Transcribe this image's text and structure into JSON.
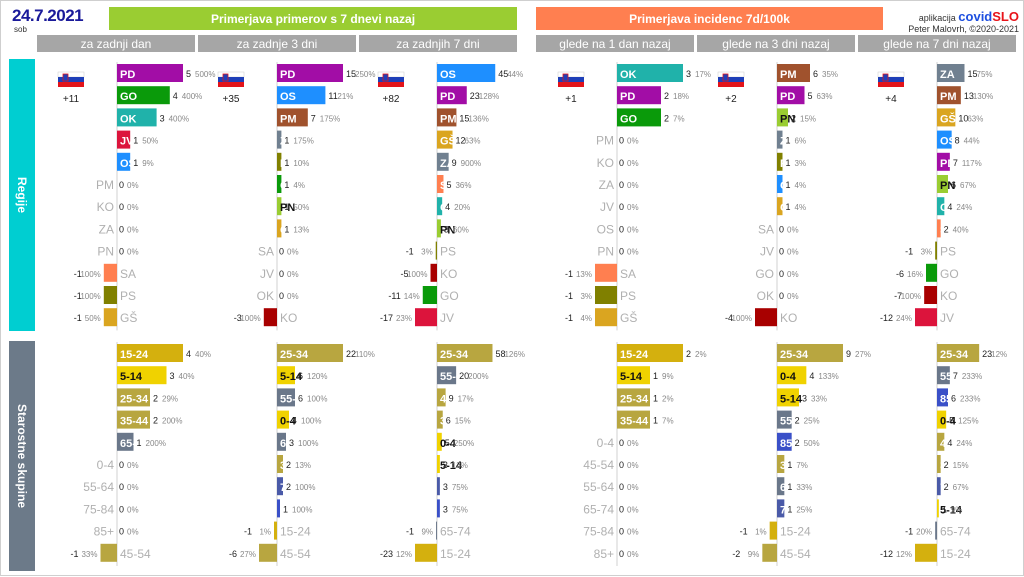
{
  "header": {
    "date": "24.7.2021",
    "day": "sob",
    "title_cases": "Primerjava primerov s 7 dnevi nazaj",
    "title_incidence": "Primerjava incidenc 7d/100k",
    "app_label": "aplikacija",
    "app_name_a": "covid",
    "app_name_b": "SLO",
    "author": "Peter Malovrh, ©2020-2021",
    "subtitles": [
      "za zadnji dan",
      "za zadnje 3 dni",
      "za zadnjih 7 dni",
      "glede na 1 dan nazaj",
      "glede na 3 dni nazaj",
      "glede na 7 dni nazaj"
    ]
  },
  "sidebar": {
    "regions_label": "Regije",
    "age_label": "Starostne skupine"
  },
  "colors": {
    "header_green": "#9acd32",
    "header_orange": "#ff7f50",
    "sidebar_cyan": "#00ced1",
    "sidebar_slate": "#6c7a89",
    "regions": {
      "PD": "#a20da6",
      "GO": "#0a9a0a",
      "OK": "#20b2aa",
      "JV": "#dc143c",
      "OS": "#1e8fff",
      "PM": "#a0522d",
      "KO": "#a80000",
      "ZA": "#708090",
      "PN": "#9acd32",
      "SA": "#ff7f50",
      "PS": "#808000",
      "GŠ": "#daa520"
    },
    "ages": {
      "15-24": "#d4b00e",
      "5-14": "#f0d200",
      "25-34": "#b8a640",
      "35-44": "#b8a640",
      "65-74": "#6a778a",
      "0-4": "#f0d200",
      "55-64": "#6a778a",
      "75-84": "#4a5aa8",
      "85+": "#3a50c8",
      "45-54": "#b8a640"
    }
  },
  "chart_data": {
    "type": "bar",
    "panels": [
      {
        "subtitle": "za zadnji dan",
        "flag_total": "+11",
        "regions": [
          [
            "PD",
            5,
            "500%"
          ],
          [
            "GO",
            4,
            "400%"
          ],
          [
            "OK",
            3,
            "400%"
          ],
          [
            "JV",
            1,
            "50%"
          ],
          [
            "OS",
            1,
            "9%"
          ],
          [
            "PM",
            0,
            "0%"
          ],
          [
            "KO",
            0,
            "0%"
          ],
          [
            "ZA",
            0,
            "0%"
          ],
          [
            "PN",
            0,
            "0%"
          ],
          [
            "SA",
            -1,
            "100%"
          ],
          [
            "PS",
            -1,
            "100%"
          ],
          [
            "GŠ",
            -1,
            "50%"
          ]
        ],
        "ages": [
          [
            "15-24",
            4,
            "40%"
          ],
          [
            "5-14",
            3,
            "40%"
          ],
          [
            "25-34",
            2,
            "29%"
          ],
          [
            "35-44",
            2,
            "200%"
          ],
          [
            "65-74",
            1,
            "200%"
          ],
          [
            "0-4",
            0,
            "0%"
          ],
          [
            "55-64",
            0,
            "0%"
          ],
          [
            "75-84",
            0,
            "0%"
          ],
          [
            "85+",
            0,
            "0%"
          ],
          [
            "45-54",
            -1,
            "33%"
          ]
        ]
      },
      {
        "subtitle": "za zadnje 3 dni",
        "flag_total": "+35",
        "regions": [
          [
            "PD",
            15,
            "250%"
          ],
          [
            "OS",
            11,
            "21%"
          ],
          [
            "PM",
            7,
            "175%"
          ],
          [
            "ZA",
            1,
            "175%"
          ],
          [
            "PS",
            1,
            "10%"
          ],
          [
            "GO",
            1,
            "4%"
          ],
          [
            "PN",
            1,
            "50%"
          ],
          [
            "GŠ",
            1,
            "13%"
          ],
          [
            "SA",
            0,
            "0%"
          ],
          [
            "JV",
            0,
            "0%"
          ],
          [
            "OK",
            0,
            "0%"
          ],
          [
            "KO",
            -3,
            "100%"
          ]
        ],
        "ages": [
          [
            "25-34",
            22,
            "110%"
          ],
          [
            "5-14",
            6,
            "120%"
          ],
          [
            "55-64",
            6,
            "100%"
          ],
          [
            "0-4",
            4,
            "100%"
          ],
          [
            "65-74",
            3,
            "100%"
          ],
          [
            "35-44",
            2,
            "13%"
          ],
          [
            "75-84",
            2,
            "100%"
          ],
          [
            "85+",
            1,
            "100%"
          ],
          [
            "15-24",
            -1,
            "1%"
          ],
          [
            "45-54",
            -6,
            "27%"
          ]
        ]
      },
      {
        "subtitle": "za zadnjih 7 dni",
        "flag_total": "+82",
        "regions": [
          [
            "OS",
            45,
            "44%"
          ],
          [
            "PD",
            23,
            "128%"
          ],
          [
            "PM",
            15,
            "136%"
          ],
          [
            "GŠ",
            12,
            "63%"
          ],
          [
            "ZA",
            9,
            "900%"
          ],
          [
            "SA",
            5,
            "36%"
          ],
          [
            "OK",
            4,
            "20%"
          ],
          [
            "PN",
            3,
            "60%"
          ],
          [
            "PS",
            -1,
            "3%"
          ],
          [
            "KO",
            -5,
            "100%"
          ],
          [
            "GO",
            -11,
            "14%"
          ],
          [
            "JV",
            -17,
            "23%"
          ]
        ],
        "ages": [
          [
            "25-34",
            58,
            "126%"
          ],
          [
            "55-64",
            20,
            "200%"
          ],
          [
            "45-54",
            9,
            "17%"
          ],
          [
            "35-44",
            6,
            "15%"
          ],
          [
            "0-4",
            5,
            "250%"
          ],
          [
            "5-14",
            3,
            "13%"
          ],
          [
            "75-84",
            3,
            "75%"
          ],
          [
            "85+",
            3,
            "75%"
          ],
          [
            "65-74",
            -1,
            "9%"
          ],
          [
            "15-24",
            -23,
            "12%"
          ]
        ]
      },
      {
        "subtitle": "glede na 1 dan nazaj",
        "flag_total": "+1",
        "regions": [
          [
            "OK",
            3,
            "17%"
          ],
          [
            "PD",
            2,
            "18%"
          ],
          [
            "GO",
            2,
            "7%"
          ],
          [
            "PM",
            0,
            "0%"
          ],
          [
            "KO",
            0,
            "0%"
          ],
          [
            "ZA",
            0,
            "0%"
          ],
          [
            "JV",
            0,
            "0%"
          ],
          [
            "OS",
            0,
            "0%"
          ],
          [
            "PN",
            0,
            "0%"
          ],
          [
            "SA",
            -1,
            "13%"
          ],
          [
            "PS",
            -1,
            "3%"
          ],
          [
            "GŠ",
            -1,
            "4%"
          ]
        ],
        "ages": [
          [
            "15-24",
            2,
            "2%"
          ],
          [
            "5-14",
            1,
            "9%"
          ],
          [
            "25-34",
            1,
            "2%"
          ],
          [
            "35-44",
            1,
            "7%"
          ],
          [
            "0-4",
            0,
            "0%"
          ],
          [
            "45-54",
            0,
            "0%"
          ],
          [
            "55-64",
            0,
            "0%"
          ],
          [
            "65-74",
            0,
            "0%"
          ],
          [
            "75-84",
            0,
            "0%"
          ],
          [
            "85+",
            0,
            "0%"
          ]
        ]
      },
      {
        "subtitle": "glede na 3 dni nazaj",
        "flag_total": "+2",
        "regions": [
          [
            "PM",
            6,
            "35%"
          ],
          [
            "PD",
            5,
            "63%"
          ],
          [
            "PN",
            2,
            "15%"
          ],
          [
            "ZA",
            1,
            "6%"
          ],
          [
            "PS",
            1,
            "3%"
          ],
          [
            "OS",
            1,
            "4%"
          ],
          [
            "GŠ",
            1,
            "4%"
          ],
          [
            "SA",
            0,
            "0%"
          ],
          [
            "JV",
            0,
            "0%"
          ],
          [
            "GO",
            0,
            "0%"
          ],
          [
            "OK",
            0,
            "0%"
          ],
          [
            "KO",
            -4,
            "100%"
          ]
        ],
        "ages": [
          [
            "25-34",
            9,
            "27%"
          ],
          [
            "0-4",
            4,
            "133%"
          ],
          [
            "5-14",
            3,
            "33%"
          ],
          [
            "55-64",
            2,
            "25%"
          ],
          [
            "85+",
            2,
            "50%"
          ],
          [
            "35-44",
            1,
            "7%"
          ],
          [
            "65-74",
            1,
            "33%"
          ],
          [
            "75-84",
            1,
            "25%"
          ],
          [
            "15-24",
            -1,
            "1%"
          ],
          [
            "45-54",
            -2,
            "9%"
          ]
        ]
      },
      {
        "subtitle": "glede na 7 dni nazaj",
        "flag_total": "+4",
        "regions": [
          [
            "ZA",
            15,
            "75%"
          ],
          [
            "PM",
            13,
            "130%"
          ],
          [
            "GŠ",
            10,
            "63%"
          ],
          [
            "OS",
            8,
            "44%"
          ],
          [
            "PD",
            7,
            "117%"
          ],
          [
            "PN",
            6,
            "67%"
          ],
          [
            "OK",
            4,
            "24%"
          ],
          [
            "SA",
            2,
            "40%"
          ],
          [
            "PS",
            -1,
            "3%"
          ],
          [
            "GO",
            -6,
            "16%"
          ],
          [
            "KO",
            -7,
            "100%"
          ],
          [
            "JV",
            -12,
            "24%"
          ]
        ],
        "ages": [
          [
            "25-34",
            23,
            "12%"
          ],
          [
            "55-64",
            7,
            "233%"
          ],
          [
            "85+",
            6,
            "233%"
          ],
          [
            "0-4",
            5,
            "125%"
          ],
          [
            "45-54",
            4,
            "24%"
          ],
          [
            "35-44",
            2,
            "15%"
          ],
          [
            "75-84",
            2,
            "67%"
          ],
          [
            "5-14",
            1,
            "9%"
          ],
          [
            "65-74",
            -1,
            "20%"
          ],
          [
            "15-24",
            -12,
            "12%"
          ]
        ]
      }
    ]
  }
}
